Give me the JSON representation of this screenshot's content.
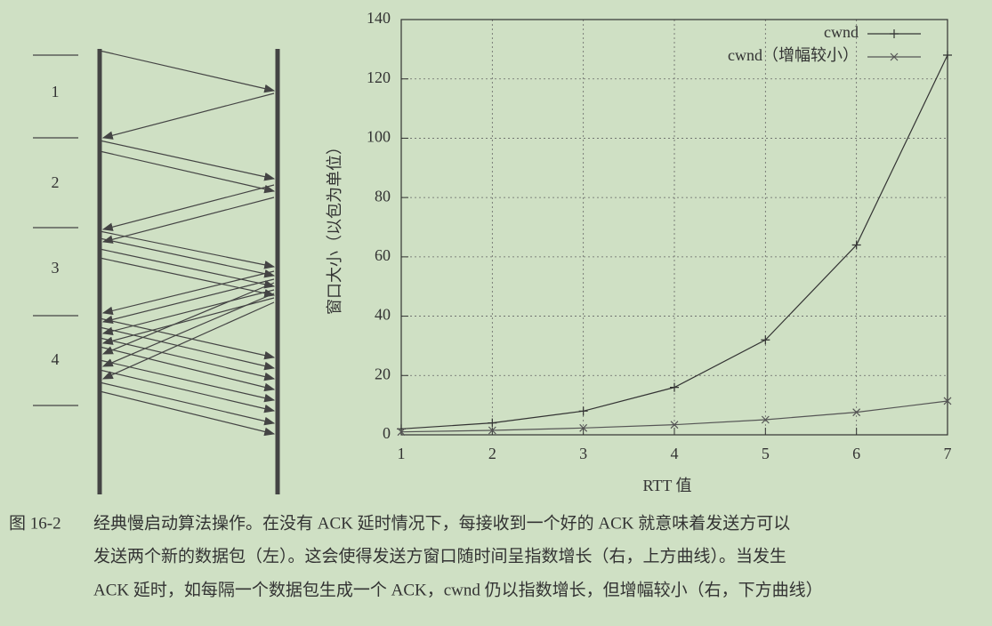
{
  "diagram": {
    "rounds": [
      "1",
      "2",
      "3",
      "4"
    ]
  },
  "chart_data": {
    "type": "line",
    "x": [
      1,
      2,
      3,
      4,
      5,
      6,
      7
    ],
    "series": [
      {
        "name": "cwnd",
        "color": "#333333",
        "marker": "+",
        "values": [
          2,
          4,
          8,
          16,
          32,
          64,
          128
        ]
      },
      {
        "name": "cwnd（增幅较小）",
        "color": "#555555",
        "marker": "x",
        "values": [
          1,
          1.5,
          2.3,
          3.4,
          5.1,
          7.6,
          11.4
        ]
      }
    ],
    "xlabel": "RTT 值",
    "ylabel": "窗口大小（以包为单位）",
    "xlim": [
      1,
      7
    ],
    "xticks": [
      1,
      2,
      3,
      4,
      5,
      6,
      7
    ],
    "ylim": [
      0,
      140
    ],
    "yticks": [
      0,
      20,
      40,
      60,
      80,
      100,
      120,
      140
    ],
    "grid": true,
    "legend": "upper right"
  },
  "caption": {
    "label": "图 16-2",
    "lines": [
      "经典慢启动算法操作。在没有 ACK 延时情况下，每接收到一个好的 ACK 就意味着发送方可以",
      "发送两个新的数据包（左）。这会使得发送方窗口随时间呈指数增长（右，上方曲线）。当发生",
      "ACK 延时，如每隔一个数据包生成一个 ACK，cwnd 仍以指数增长，但增幅较小（右，下方曲线）"
    ]
  }
}
